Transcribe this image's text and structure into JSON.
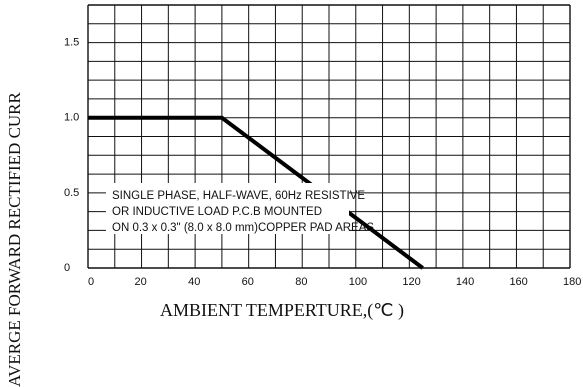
{
  "chart_data": {
    "type": "line",
    "xlabel": "AMBIENT TEMPERTURE,(℃ )",
    "ylabel": "AVERGE FORWARD  RECTIFIED CURR",
    "xlim": [
      0,
      180
    ],
    "ylim": [
      0,
      1.75
    ],
    "x_ticks": [
      "0",
      "20",
      "40",
      "60",
      "80",
      "100",
      "120",
      "140",
      "160",
      "180"
    ],
    "y_ticks": [
      "0",
      "0.5",
      "1.0",
      "1.5"
    ],
    "grid": true,
    "series": [
      {
        "x": [
          0,
          50,
          125
        ],
        "y": [
          1.0,
          1.0,
          0.0
        ]
      }
    ],
    "annotation": [
      "SINGLE PHASE, HALF-WAVE, 60Hz RESISTIVE",
      "OR INDUCTIVE LOAD P.C.B MOUNTED",
      "ON 0.3 x 0.3\" (8.0 x 8.0 mm)COPPER PAD AREAS"
    ]
  }
}
